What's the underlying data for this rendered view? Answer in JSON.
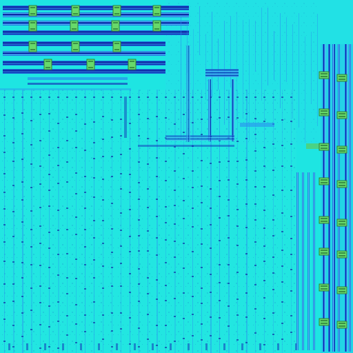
{
  "image": {
    "kind": "chip-layout-heatmap",
    "palette": {
      "background": "#19e6e4",
      "background_light": "#33f0ea",
      "dense_routing": "#2a8ff0",
      "deep_routing": "#1226b8",
      "via_dark": "#0a1d9a",
      "cell_marker": "#67d96a",
      "cell_marker_edge": "#2f7e3a",
      "highlight_strip": "#4fd07a"
    },
    "legend_visible": false,
    "text_labels_visible": false
  }
}
